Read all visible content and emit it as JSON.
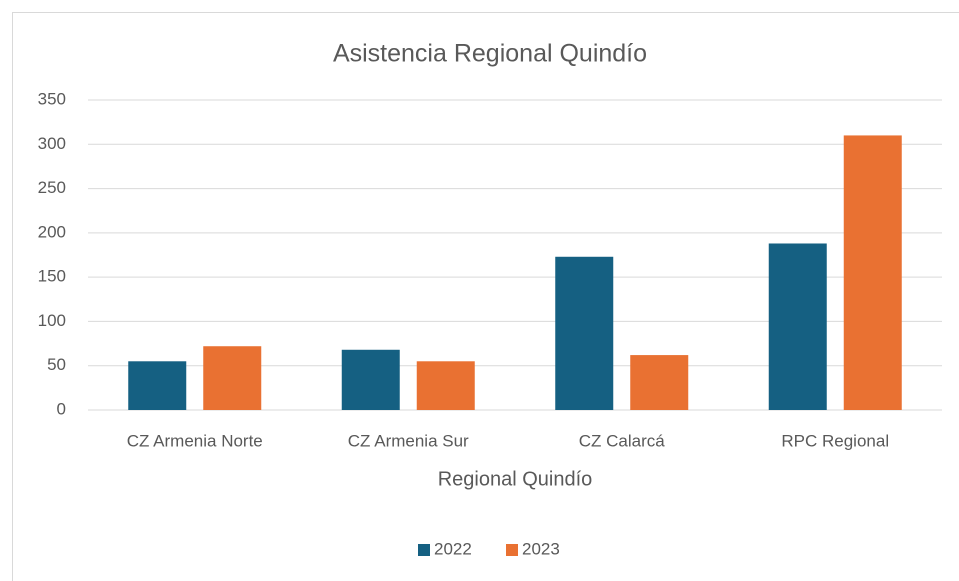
{
  "chart_data": {
    "type": "bar",
    "title": "Asistencia Regional Quindío",
    "x_label": "Regional Quindío",
    "categories": [
      "CZ Armenia Norte",
      "CZ Armenia Sur",
      "CZ Calarcá",
      "RPC Regional"
    ],
    "series": [
      {
        "name": "2022",
        "color": "#156082",
        "values": [
          55,
          68,
          173,
          188
        ]
      },
      {
        "name": "2023",
        "color": "#e97132",
        "values": [
          72,
          55,
          62,
          310
        ]
      }
    ],
    "ylim": [
      0,
      350
    ],
    "yticks": [
      0,
      50,
      100,
      150,
      200,
      250,
      300,
      350
    ],
    "grid": true,
    "legend": "bottom"
  }
}
